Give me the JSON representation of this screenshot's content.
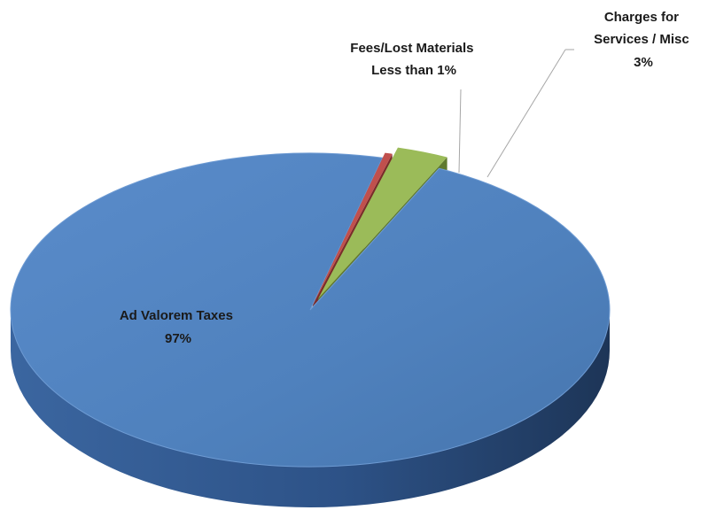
{
  "chart_data": {
    "type": "pie",
    "style": "3d-exploded",
    "title": "",
    "slices": [
      {
        "name": "Ad Valorem Taxes",
        "label_lines": [
          "Ad Valorem Taxes",
          "97%"
        ],
        "value": 96.8,
        "color": "#4f81bd"
      },
      {
        "name": "Fees/Lost Materials",
        "label_lines": [
          "Fees/Lost Materials",
          "Less than 1%"
        ],
        "value": 0.4,
        "color": "#c0504d"
      },
      {
        "name": "Charges for Services / Misc",
        "label_lines": [
          "Charges for",
          "Services / Misc",
          "3%"
        ],
        "value": 2.8,
        "color": "#9bbb59"
      }
    ]
  }
}
